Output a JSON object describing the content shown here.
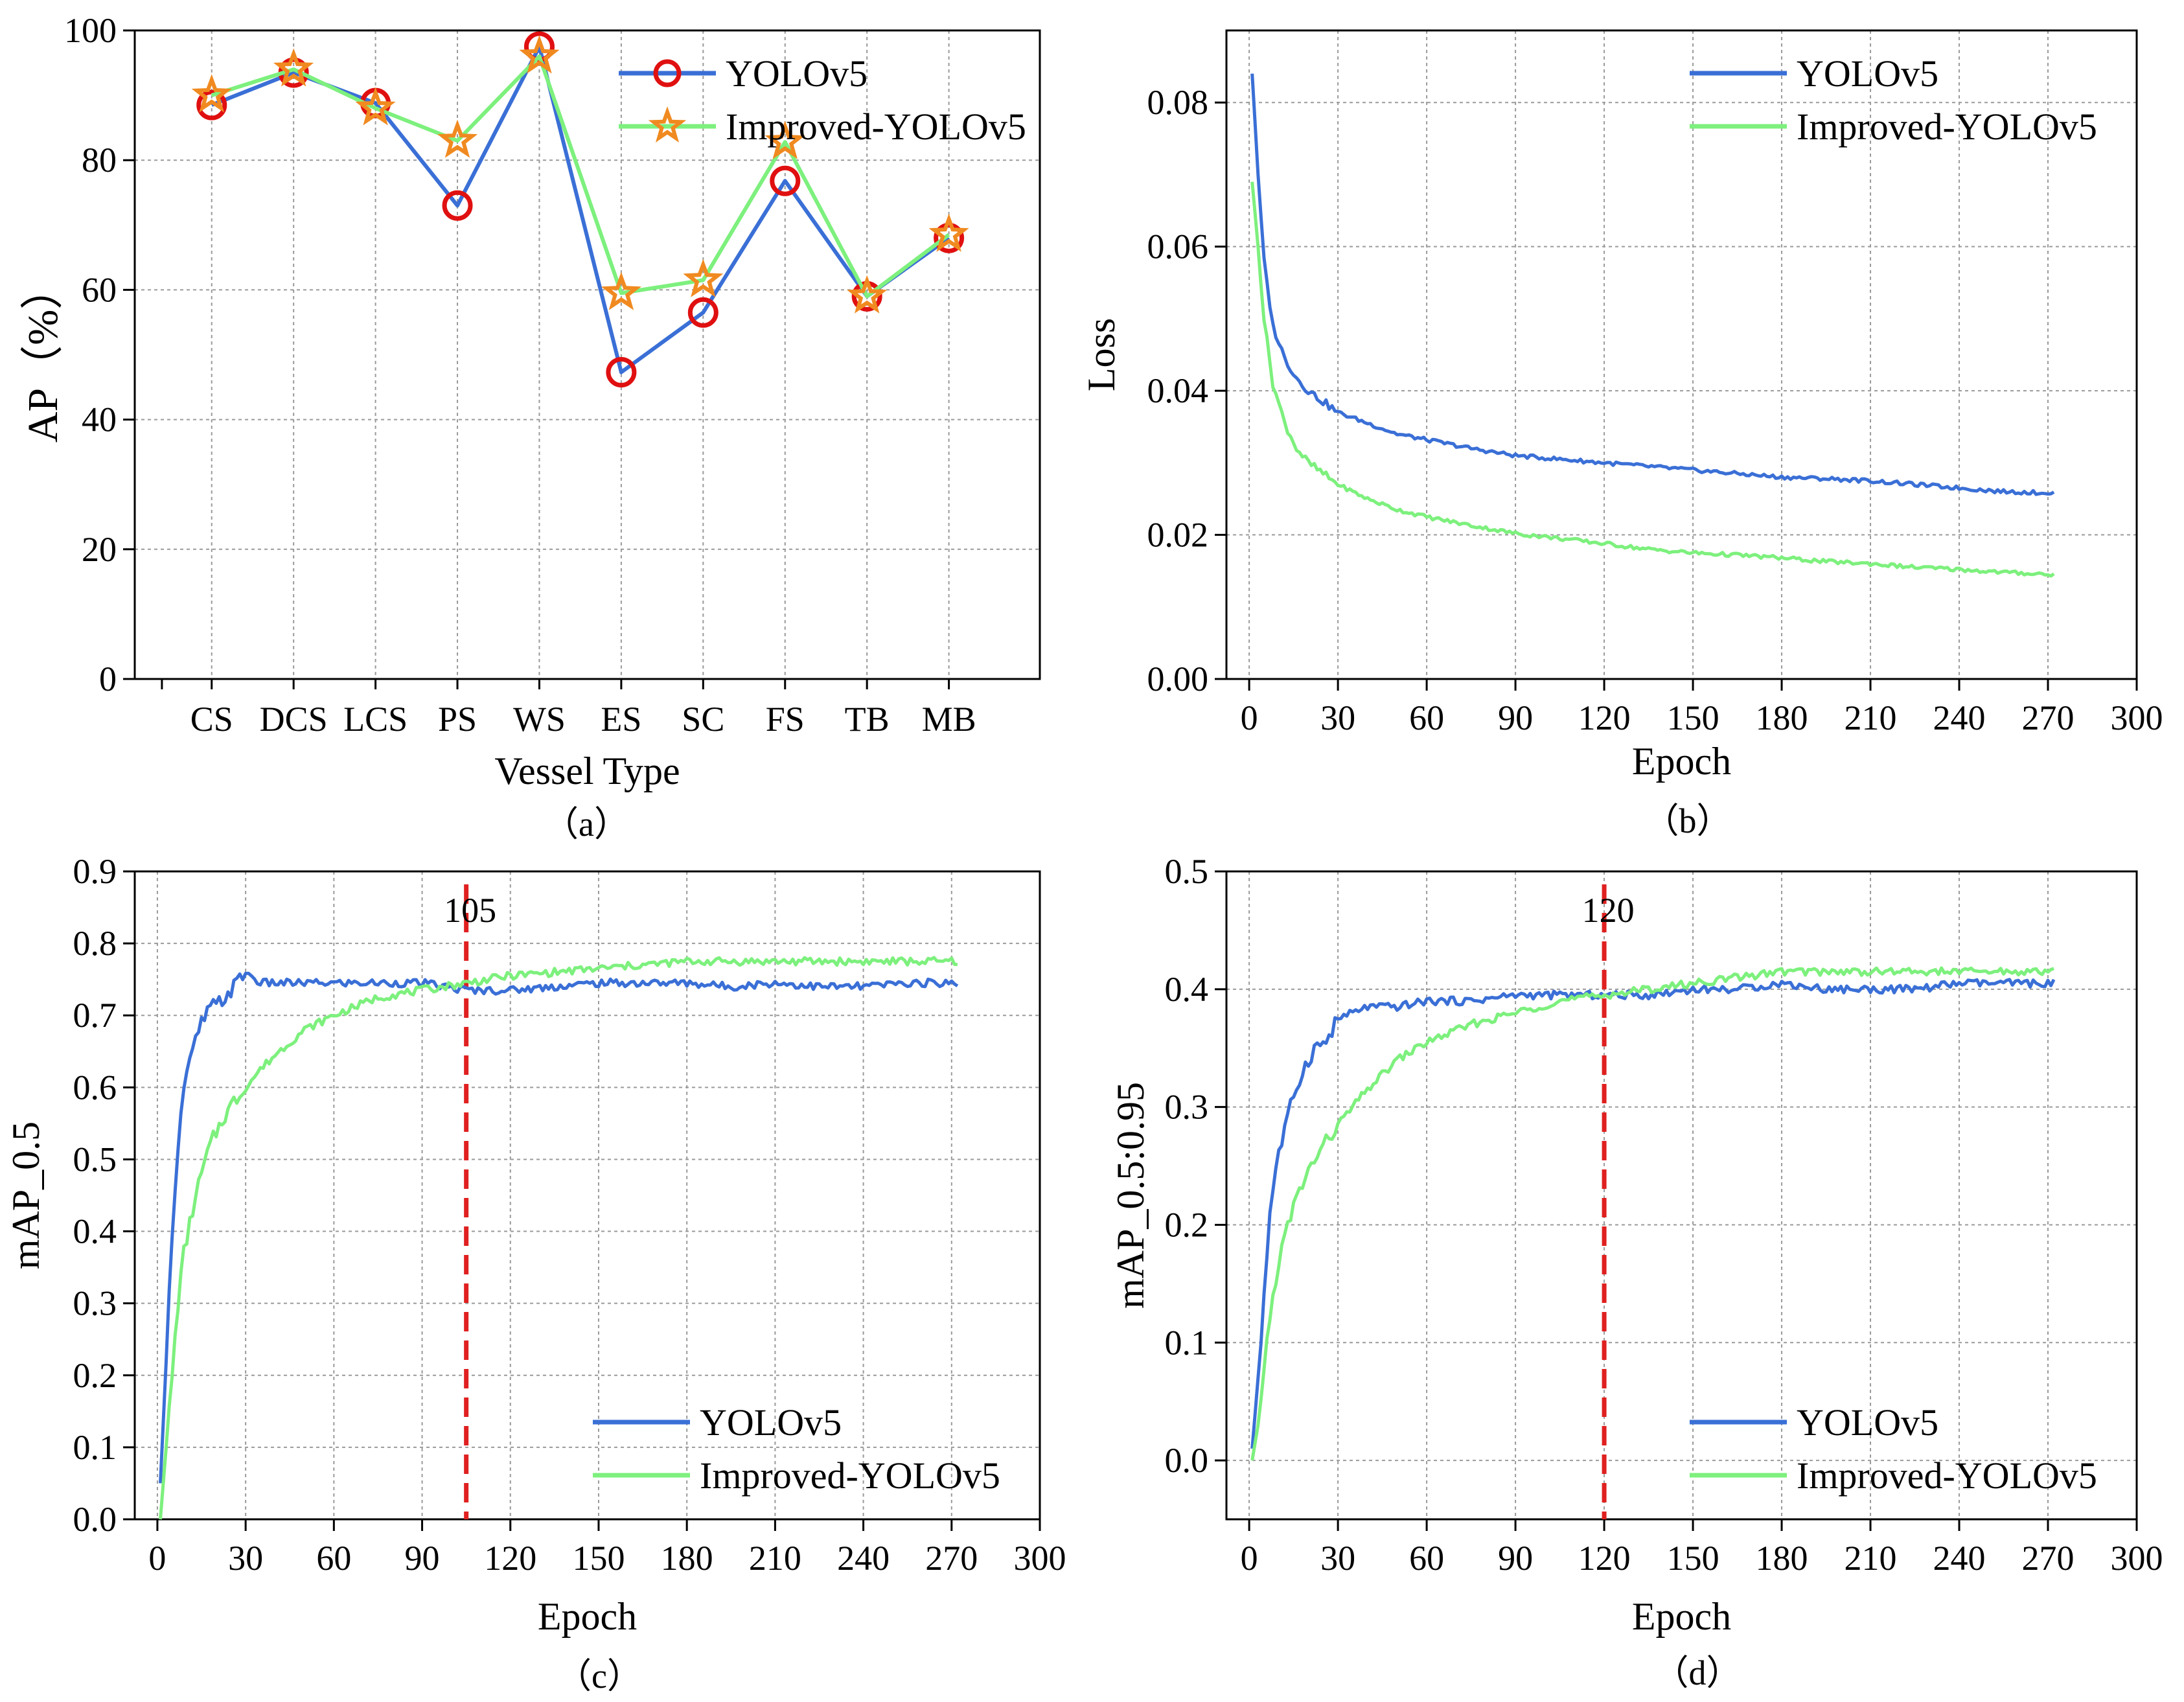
{
  "colors": {
    "yolo": "#3a6fd6",
    "improved": "#7df07d",
    "circle_marker": "#e01010",
    "star_marker": "#f08a20",
    "vline": "#e02020"
  },
  "chart_data": [
    {
      "id": "a",
      "type": "line",
      "caption": "（a）",
      "xlabel": "Vessel Type",
      "ylabel": "AP（%）",
      "ylim": [
        0,
        100
      ],
      "yticks": [
        "0",
        "20",
        "40",
        "60",
        "80",
        "100"
      ],
      "categories": [
        "CS",
        "DCS",
        "LCS",
        "PS",
        "WS",
        "ES",
        "SC",
        "FS",
        "TB",
        "MB"
      ],
      "grid": true,
      "legend_position": "top-right",
      "series": [
        {
          "name": "YOLOv5",
          "marker": "circle",
          "values": [
            88.5,
            93.5,
            88.8,
            73.0,
            97.5,
            47.3,
            56.5,
            76.8,
            59.0,
            68.0
          ]
        },
        {
          "name": "Improved-YOLOv5",
          "marker": "star",
          "values": [
            90.0,
            94.0,
            88.0,
            83.0,
            96.0,
            59.5,
            61.5,
            82.8,
            59.0,
            68.5
          ]
        }
      ]
    },
    {
      "id": "b",
      "type": "line",
      "caption": "（b）",
      "xlabel": "Epoch",
      "ylabel": "Loss",
      "xlim": [
        0,
        300
      ],
      "ylim": [
        0,
        0.09
      ],
      "xticks": [
        "0",
        "30",
        "60",
        "90",
        "120",
        "150",
        "180",
        "210",
        "240",
        "270",
        "300"
      ],
      "yticks": [
        "0.00",
        "0.02",
        "0.04",
        "0.06",
        "0.08"
      ],
      "grid": true,
      "legend_position": "top-right",
      "series": [
        {
          "name": "YOLOv5",
          "x": [
            1,
            3,
            5,
            8,
            12,
            16,
            20,
            25,
            30,
            40,
            50,
            60,
            75,
            90,
            105,
            120,
            135,
            150,
            165,
            180,
            195,
            210,
            225,
            240,
            255,
            272
          ],
          "values": [
            0.084,
            0.07,
            0.058,
            0.049,
            0.0445,
            0.0418,
            0.04,
            0.0385,
            0.037,
            0.0355,
            0.034,
            0.0332,
            0.032,
            0.031,
            0.0305,
            0.03,
            0.0295,
            0.029,
            0.0285,
            0.028,
            0.0278,
            0.0275,
            0.027,
            0.0265,
            0.026,
            0.0258
          ]
        },
        {
          "name": "Improved-YOLOv5",
          "x": [
            1,
            3,
            5,
            8,
            12,
            16,
            20,
            25,
            30,
            40,
            50,
            60,
            75,
            90,
            105,
            120,
            135,
            150,
            165,
            180,
            195,
            210,
            225,
            240,
            255,
            272
          ],
          "values": [
            0.069,
            0.06,
            0.05,
            0.041,
            0.0355,
            0.032,
            0.03,
            0.0285,
            0.027,
            0.025,
            0.0235,
            0.0225,
            0.0213,
            0.0202,
            0.0195,
            0.0188,
            0.018,
            0.0175,
            0.0172,
            0.0168,
            0.0163,
            0.016,
            0.0155,
            0.0152,
            0.0148,
            0.0145
          ]
        }
      ]
    },
    {
      "id": "c",
      "type": "line",
      "caption": "（c）",
      "xlabel": "Epoch",
      "ylabel": "mAP_0.5",
      "xlim": [
        0,
        300
      ],
      "ylim": [
        0,
        0.9
      ],
      "xticks": [
        "0",
        "30",
        "60",
        "90",
        "120",
        "150",
        "180",
        "210",
        "240",
        "270",
        "300"
      ],
      "yticks": [
        "0.0",
        "0.1",
        "0.2",
        "0.3",
        "0.4",
        "0.5",
        "0.6",
        "0.7",
        "0.8",
        "0.9"
      ],
      "grid": true,
      "legend_position": "bottom-right",
      "vline": {
        "x": 105,
        "label": "105"
      },
      "series": [
        {
          "name": "YOLOv5",
          "x": [
            1,
            3,
            5,
            7,
            9,
            12,
            15,
            18,
            22,
            26,
            30,
            35,
            40,
            50,
            60,
            75,
            90,
            105,
            120,
            135,
            150,
            165,
            180,
            195,
            210,
            225,
            240,
            255,
            272
          ],
          "values": [
            0.05,
            0.22,
            0.4,
            0.52,
            0.6,
            0.65,
            0.69,
            0.71,
            0.72,
            0.74,
            0.76,
            0.745,
            0.745,
            0.745,
            0.745,
            0.745,
            0.745,
            0.735,
            0.735,
            0.74,
            0.745,
            0.745,
            0.745,
            0.74,
            0.745,
            0.74,
            0.74,
            0.745,
            0.745
          ]
        },
        {
          "name": "Improved-YOLOv5",
          "x": [
            1,
            3,
            5,
            7,
            9,
            12,
            15,
            18,
            22,
            26,
            30,
            35,
            40,
            50,
            60,
            75,
            90,
            105,
            120,
            135,
            150,
            165,
            180,
            195,
            210,
            225,
            240,
            255,
            272
          ],
          "values": [
            0.0,
            0.1,
            0.2,
            0.3,
            0.37,
            0.43,
            0.48,
            0.52,
            0.555,
            0.58,
            0.6,
            0.625,
            0.645,
            0.68,
            0.7,
            0.725,
            0.735,
            0.745,
            0.755,
            0.76,
            0.765,
            0.77,
            0.775,
            0.775,
            0.775,
            0.775,
            0.775,
            0.775,
            0.775
          ]
        }
      ]
    },
    {
      "id": "d",
      "type": "line",
      "caption": "（d）",
      "xlabel": "Epoch",
      "ylabel": "mAP_0.5:0.95",
      "xlim": [
        0,
        300
      ],
      "ylim": [
        -0.05,
        0.5
      ],
      "xticks": [
        "0",
        "30",
        "60",
        "90",
        "120",
        "150",
        "180",
        "210",
        "240",
        "270",
        "300"
      ],
      "yticks": [
        "0.0",
        "0.1",
        "0.2",
        "0.3",
        "0.4",
        "0.5"
      ],
      "grid": true,
      "legend_position": "bottom-right",
      "vline": {
        "x": 120,
        "label": "120"
      },
      "series": [
        {
          "name": "YOLOv5",
          "x": [
            1,
            3,
            5,
            7,
            9,
            12,
            15,
            18,
            22,
            26,
            30,
            35,
            40,
            50,
            60,
            75,
            90,
            105,
            120,
            135,
            150,
            165,
            180,
            195,
            210,
            225,
            240,
            255,
            272
          ],
          "values": [
            0.01,
            0.07,
            0.14,
            0.21,
            0.25,
            0.28,
            0.31,
            0.33,
            0.35,
            0.355,
            0.375,
            0.38,
            0.385,
            0.385,
            0.39,
            0.39,
            0.395,
            0.395,
            0.395,
            0.395,
            0.4,
            0.4,
            0.405,
            0.4,
            0.4,
            0.4,
            0.405,
            0.405,
            0.405
          ]
        },
        {
          "name": "Improved-YOLOv5",
          "x": [
            1,
            3,
            5,
            7,
            9,
            12,
            15,
            18,
            22,
            26,
            30,
            35,
            40,
            50,
            60,
            75,
            90,
            105,
            120,
            135,
            150,
            165,
            180,
            195,
            210,
            225,
            240,
            255,
            272
          ],
          "values": [
            0.0,
            0.03,
            0.08,
            0.12,
            0.155,
            0.19,
            0.215,
            0.235,
            0.255,
            0.27,
            0.285,
            0.3,
            0.315,
            0.34,
            0.355,
            0.37,
            0.38,
            0.39,
            0.395,
            0.4,
            0.405,
            0.41,
            0.415,
            0.415,
            0.415,
            0.415,
            0.415,
            0.415,
            0.415
          ]
        }
      ]
    }
  ]
}
